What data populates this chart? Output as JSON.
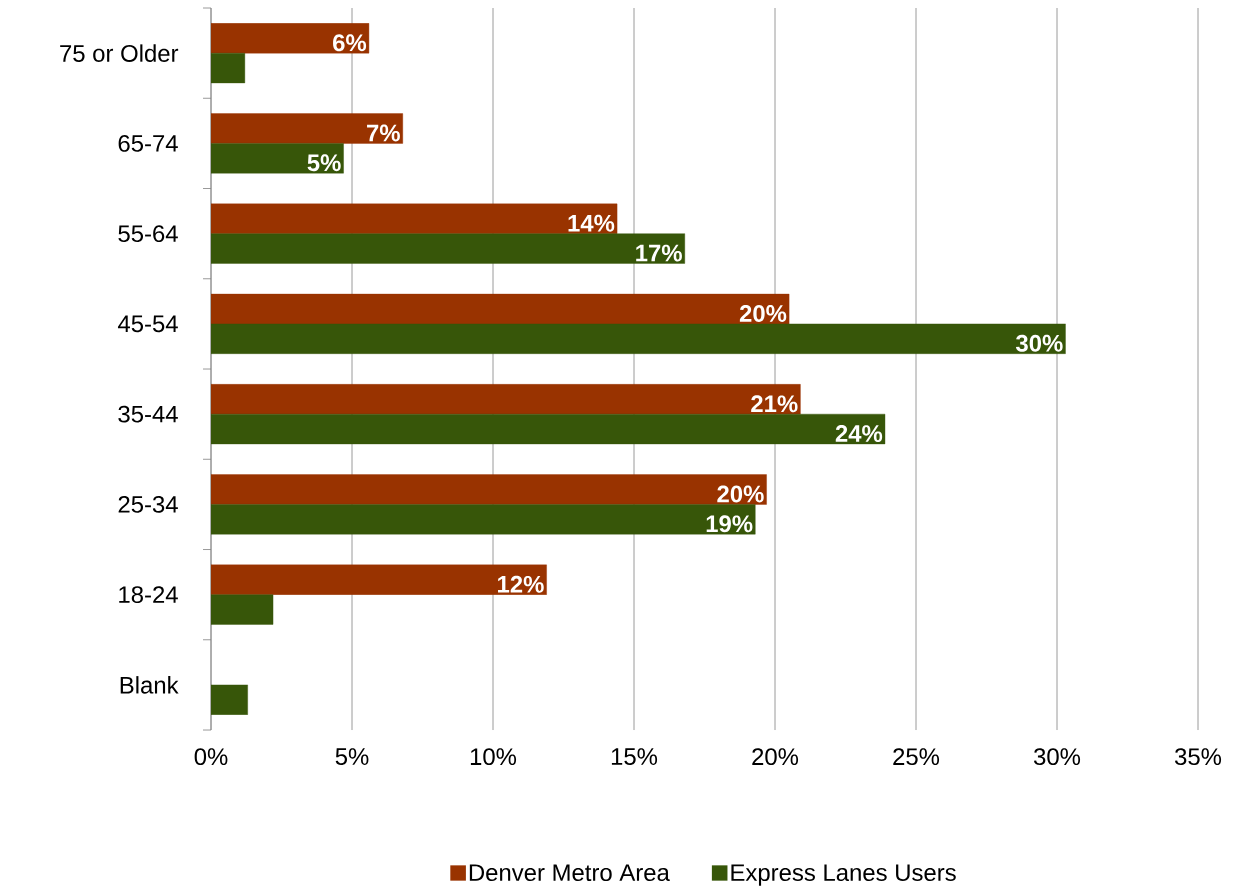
{
  "chart_data": {
    "type": "bar",
    "orientation": "horizontal",
    "categories": [
      "75 or Older",
      "65-74",
      "55-64",
      "45-54",
      "35-44",
      "25-34",
      "18-24",
      "Blank"
    ],
    "series": [
      {
        "name": "Denver Metro Area",
        "color": "#993300",
        "values": [
          5.6,
          6.8,
          14.4,
          20.5,
          20.9,
          19.7,
          11.9,
          null
        ],
        "value_labels": [
          "6%",
          "7%",
          "14%",
          "20%",
          "21%",
          "20%",
          "12%",
          null
        ]
      },
      {
        "name": "Express Lanes Users",
        "color": "#375609",
        "values": [
          1.2,
          4.7,
          16.8,
          30.3,
          23.9,
          19.3,
          2.2,
          1.3
        ],
        "value_labels": [
          null,
          "5%",
          "17%",
          "30%",
          "24%",
          "19%",
          null,
          null
        ]
      }
    ],
    "xlim": [
      0,
      35
    ],
    "xticks": [
      {
        "value": 0,
        "label": "0%"
      },
      {
        "value": 5,
        "label": "5%"
      },
      {
        "value": 10,
        "label": "10%"
      },
      {
        "value": 15,
        "label": "15%"
      },
      {
        "value": 20,
        "label": "20%"
      },
      {
        "value": 25,
        "label": "25%"
      },
      {
        "value": 30,
        "label": "30%"
      },
      {
        "value": 35,
        "label": "35%"
      }
    ],
    "grid": "x",
    "legend": "bottom"
  }
}
